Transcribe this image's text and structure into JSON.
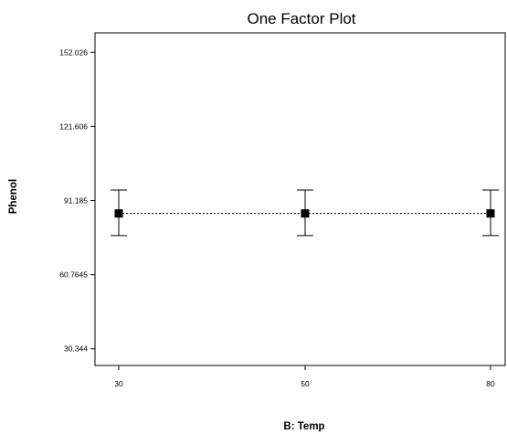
{
  "chart_data": {
    "type": "line",
    "title": "One Factor Plot",
    "xlabel": "B: Temp",
    "ylabel": "Phenol",
    "categories": [
      "30",
      "50",
      "80"
    ],
    "yticks": [
      "152.026",
      "121.606",
      "91.185",
      "60.7645",
      "30.344"
    ],
    "ylim": [
      23.5,
      160
    ],
    "series": [
      {
        "values": [
          85.9,
          85.9,
          85.9
        ],
        "error_low": [
          76.8,
          76.8,
          76.8
        ],
        "error_high": [
          95.5,
          95.5,
          95.5
        ]
      }
    ],
    "grid": false,
    "legend": "none",
    "line_style": "dotted",
    "marker": "square",
    "color": "#000000"
  }
}
